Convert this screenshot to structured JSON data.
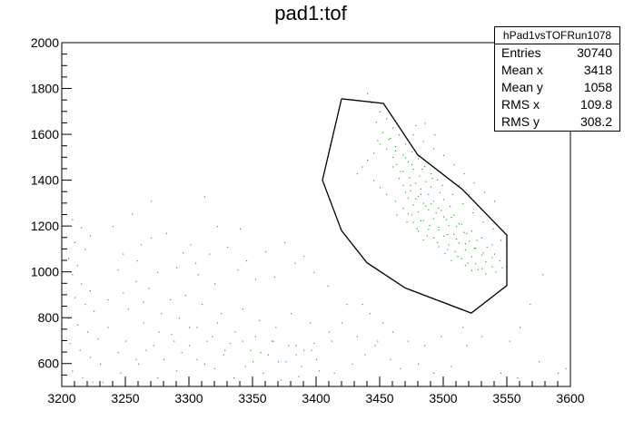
{
  "chart_data": {
    "type": "scatter",
    "title": "pad1:tof",
    "xlim": [
      3200,
      3600
    ],
    "ylim": [
      500,
      2000
    ],
    "x_ticks": [
      "3200",
      "3250",
      "3300",
      "3350",
      "3400",
      "3450",
      "3500",
      "3550",
      "3600"
    ],
    "y_ticks": [
      "600",
      "800",
      "1000",
      "1200",
      "1400",
      "1600",
      "1800",
      "2000"
    ],
    "x_tick_values": [
      3200,
      3250,
      3300,
      3350,
      3400,
      3450,
      3500,
      3550,
      3600
    ],
    "y_tick_values": [
      600,
      800,
      1000,
      1200,
      1400,
      1600,
      1800,
      2000
    ],
    "marker_color": "#00cc00",
    "cut_color": "#000000",
    "stats": {
      "name": "hPad1vsTOFRun1078",
      "rows": [
        {
          "label": "Entries",
          "value": "30740"
        },
        {
          "label": "Mean x",
          "value": "3418"
        },
        {
          "label": "Mean y",
          "value": "1058"
        },
        {
          "label": "RMS x",
          "value": "109.8"
        },
        {
          "label": "RMS y",
          "value": "308.2"
        }
      ]
    },
    "cut_polygon": [
      [
        3420,
        1755
      ],
      [
        3453,
        1735
      ],
      [
        3480,
        1510
      ],
      [
        3515,
        1360
      ],
      [
        3550,
        1160
      ],
      [
        3550,
        940
      ],
      [
        3522,
        820
      ],
      [
        3470,
        930
      ],
      [
        3440,
        1040
      ],
      [
        3420,
        1180
      ],
      [
        3405,
        1400
      ],
      [
        3420,
        1755
      ]
    ],
    "points": [
      [
        3440,
        1780
      ],
      [
        3443,
        1740
      ],
      [
        3450,
        1700
      ],
      [
        3455,
        1670
      ],
      [
        3447,
        1655
      ],
      [
        3460,
        1630
      ],
      [
        3452,
        1610
      ],
      [
        3465,
        1600
      ],
      [
        3458,
        1585
      ],
      [
        3448,
        1575
      ],
      [
        3470,
        1560
      ],
      [
        3462,
        1548
      ],
      [
        3455,
        1538
      ],
      [
        3475,
        1525
      ],
      [
        3468,
        1512
      ],
      [
        3460,
        1502
      ],
      [
        3480,
        1495
      ],
      [
        3472,
        1482
      ],
      [
        3463,
        1470
      ],
      [
        3485,
        1462
      ],
      [
        3476,
        1450
      ],
      [
        3468,
        1440
      ],
      [
        3490,
        1430
      ],
      [
        3481,
        1420
      ],
      [
        3473,
        1412
      ],
      [
        3495,
        1404
      ],
      [
        3486,
        1396
      ],
      [
        3478,
        1388
      ],
      [
        3468,
        1380
      ],
      [
        3490,
        1372
      ],
      [
        3482,
        1364
      ],
      [
        3474,
        1356
      ],
      [
        3497,
        1348
      ],
      [
        3488,
        1340
      ],
      [
        3480,
        1332
      ],
      [
        3472,
        1324
      ],
      [
        3500,
        1318
      ],
      [
        3492,
        1310
      ],
      [
        3484,
        1302
      ],
      [
        3476,
        1294
      ],
      [
        3505,
        1288
      ],
      [
        3496,
        1280
      ],
      [
        3488,
        1272
      ],
      [
        3480,
        1264
      ],
      [
        3472,
        1256
      ],
      [
        3508,
        1250
      ],
      [
        3500,
        1242
      ],
      [
        3492,
        1234
      ],
      [
        3484,
        1226
      ],
      [
        3476,
        1218
      ],
      [
        3512,
        1212
      ],
      [
        3504,
        1204
      ],
      [
        3496,
        1196
      ],
      [
        3488,
        1188
      ],
      [
        3480,
        1180
      ],
      [
        3516,
        1174
      ],
      [
        3508,
        1166
      ],
      [
        3500,
        1158
      ],
      [
        3492,
        1150
      ],
      [
        3484,
        1142
      ],
      [
        3520,
        1136
      ],
      [
        3512,
        1128
      ],
      [
        3504,
        1120
      ],
      [
        3496,
        1112
      ],
      [
        3525,
        1106
      ],
      [
        3517,
        1098
      ],
      [
        3509,
        1090
      ],
      [
        3501,
        1082
      ],
      [
        3530,
        1076
      ],
      [
        3522,
        1068
      ],
      [
        3514,
        1060
      ],
      [
        3506,
        1052
      ],
      [
        3533,
        1046
      ],
      [
        3525,
        1038
      ],
      [
        3517,
        1030
      ],
      [
        3538,
        1024
      ],
      [
        3530,
        1016
      ],
      [
        3522,
        1008
      ],
      [
        3541,
        1002
      ],
      [
        3533,
        994
      ],
      [
        3470,
        1350
      ],
      [
        3478,
        1320
      ],
      [
        3486,
        1290
      ],
      [
        3494,
        1260
      ],
      [
        3502,
        1230
      ],
      [
        3510,
        1200
      ],
      [
        3518,
        1170
      ],
      [
        3526,
        1140
      ],
      [
        3534,
        1110
      ],
      [
        3540,
        1080
      ],
      [
        3465,
        1410
      ],
      [
        3474,
        1380
      ],
      [
        3482,
        1340
      ],
      [
        3490,
        1300
      ],
      [
        3498,
        1270
      ],
      [
        3506,
        1240
      ],
      [
        3514,
        1210
      ],
      [
        3522,
        1180
      ],
      [
        3530,
        1150
      ],
      [
        3538,
        1120
      ],
      [
        3544,
        1050
      ],
      [
        3546,
        1020
      ],
      [
        3460,
        1460
      ],
      [
        3466,
        1440
      ],
      [
        3462,
        1530
      ],
      [
        3470,
        1500
      ],
      [
        3475,
        1470
      ],
      [
        3483,
        1450
      ],
      [
        3491,
        1410
      ],
      [
        3499,
        1380
      ],
      [
        3507,
        1340
      ],
      [
        3515,
        1300
      ],
      [
        3523,
        1260
      ],
      [
        3531,
        1220
      ],
      [
        3539,
        1190
      ],
      [
        3545,
        1140
      ],
      [
        3457,
        1580
      ],
      [
        3450,
        1560
      ],
      [
        3445,
        1520
      ],
      [
        3440,
        1490
      ],
      [
        3436,
        1460
      ],
      [
        3432,
        1430
      ],
      [
        3445,
        1400
      ],
      [
        3450,
        1370
      ],
      [
        3455,
        1340
      ],
      [
        3462,
        1310
      ],
      [
        3468,
        1280
      ],
      [
        3475,
        1250
      ],
      [
        3482,
        1225
      ],
      [
        3489,
        1205
      ],
      [
        3496,
        1185
      ],
      [
        3503,
        1165
      ],
      [
        3510,
        1145
      ],
      [
        3517,
        1125
      ],
      [
        3524,
        1105
      ],
      [
        3531,
        1085
      ],
      [
        3538,
        1065
      ],
      [
        3527,
        1012
      ],
      [
        3519,
        1040
      ],
      [
        3511,
        1070
      ],
      [
        3503,
        1100
      ],
      [
        3495,
        1130
      ],
      [
        3487,
        1160
      ],
      [
        3479,
        1190
      ],
      [
        3471,
        1220
      ],
      [
        3463,
        1250
      ],
      [
        3476,
        1600
      ],
      [
        3484,
        1570
      ],
      [
        3492,
        1540
      ],
      [
        3500,
        1510
      ],
      [
        3508,
        1470
      ],
      [
        3516,
        1430
      ],
      [
        3524,
        1390
      ],
      [
        3532,
        1350
      ],
      [
        3540,
        1310
      ],
      [
        3485,
        1650
      ],
      [
        3478,
        1640
      ],
      [
        3493,
        1600
      ],
      [
        3512,
        1380
      ],
      [
        3520,
        1340
      ],
      [
        3208,
        1230
      ],
      [
        3215,
        1195
      ],
      [
        3222,
        1160
      ],
      [
        3210,
        1130
      ],
      [
        3218,
        1100
      ],
      [
        3205,
        1060
      ],
      [
        3212,
        1030
      ],
      [
        3208,
        990
      ],
      [
        3215,
        950
      ],
      [
        3222,
        920
      ],
      [
        3210,
        890
      ],
      [
        3218,
        860
      ],
      [
        3225,
        830
      ],
      [
        3205,
        800
      ],
      [
        3212,
        770
      ],
      [
        3220,
        740
      ],
      [
        3228,
        710
      ],
      [
        3206,
        690
      ],
      [
        3214,
        660
      ],
      [
        3222,
        630
      ],
      [
        3230,
        600
      ],
      [
        3208,
        570
      ],
      [
        3216,
        540
      ],
      [
        3224,
        520
      ],
      [
        3240,
        1200
      ],
      [
        3255,
        1255
      ],
      [
        3262,
        1120
      ],
      [
        3248,
        1080
      ],
      [
        3270,
        1310
      ],
      [
        3282,
        1170
      ],
      [
        3295,
        1085
      ],
      [
        3305,
        1040
      ],
      [
        3312,
        1330
      ],
      [
        3322,
        1200
      ],
      [
        3340,
        1190
      ],
      [
        3258,
        960
      ],
      [
        3268,
        930
      ],
      [
        3285,
        880
      ],
      [
        3297,
        900
      ],
      [
        3310,
        860
      ],
      [
        3325,
        820
      ],
      [
        3342,
        840
      ],
      [
        3355,
        790
      ],
      [
        3368,
        760
      ],
      [
        3380,
        820
      ],
      [
        3395,
        780
      ],
      [
        3252,
        840
      ],
      [
        3264,
        780
      ],
      [
        3276,
        740
      ],
      [
        3288,
        700
      ],
      [
        3300,
        680
      ],
      [
        3318,
        720
      ],
      [
        3332,
        690
      ],
      [
        3348,
        660
      ],
      [
        3362,
        640
      ],
      [
        3376,
        610
      ],
      [
        3388,
        590
      ],
      [
        3402,
        570
      ],
      [
        3414,
        560
      ],
      [
        3428,
        600
      ],
      [
        3438,
        640
      ],
      [
        3446,
        680
      ],
      [
        3458,
        620
      ],
      [
        3466,
        580
      ],
      [
        3480,
        600
      ],
      [
        3492,
        560
      ],
      [
        3506,
        590
      ],
      [
        3518,
        680
      ],
      [
        3530,
        720
      ],
      [
        3545,
        560
      ],
      [
        3558,
        540
      ],
      [
        3575,
        610
      ],
      [
        3590,
        560
      ],
      [
        3596,
        580
      ],
      [
        3232,
        520
      ],
      [
        3246,
        560
      ],
      [
        3260,
        600
      ],
      [
        3275,
        540
      ],
      [
        3290,
        570
      ],
      [
        3306,
        620
      ],
      [
        3320,
        580
      ],
      [
        3335,
        540
      ],
      [
        3350,
        610
      ],
      [
        3365,
        700
      ],
      [
        3378,
        680
      ],
      [
        3390,
        660
      ],
      [
        3244,
        1010
      ],
      [
        3259,
        1050
      ],
      [
        3275,
        1000
      ],
      [
        3290,
        1020
      ],
      [
        3307,
        990
      ],
      [
        3320,
        950
      ],
      [
        3338,
        1010
      ],
      [
        3352,
        970
      ],
      [
        3367,
        980
      ],
      [
        3383,
        1040
      ],
      [
        3398,
        1000
      ],
      [
        3409,
        940
      ],
      [
        3236,
        760
      ],
      [
        3250,
        700
      ],
      [
        3266,
        660
      ],
      [
        3280,
        620
      ],
      [
        3294,
        650
      ],
      [
        3312,
        600
      ],
      [
        3327,
        640
      ],
      [
        3344,
        590
      ],
      [
        3358,
        560
      ],
      [
        3372,
        530
      ],
      [
        3386,
        545
      ],
      [
        3400,
        620
      ],
      [
        3412,
        700
      ],
      [
        3424,
        860
      ],
      [
        3236,
        880
      ],
      [
        3248,
        910
      ],
      [
        3264,
        870
      ],
      [
        3278,
        820
      ],
      [
        3292,
        800
      ],
      [
        3306,
        760
      ],
      [
        3322,
        780
      ],
      [
        3336,
        740
      ],
      [
        3352,
        720
      ],
      [
        3366,
        700
      ],
      [
        3384,
        680
      ],
      [
        3396,
        660
      ],
      [
        3578,
        990
      ],
      [
        3568,
        860
      ],
      [
        3560,
        760
      ],
      [
        3552,
        700
      ],
      [
        3515,
        760
      ],
      [
        3498,
        720
      ],
      [
        3485,
        680
      ],
      [
        3472,
        700
      ],
      [
        3460,
        740
      ],
      [
        3452,
        780
      ],
      [
        3442,
        820
      ],
      [
        3436,
        860
      ],
      [
        3301,
        1120
      ],
      [
        3316,
        1080
      ],
      [
        3330,
        1110
      ],
      [
        3345,
        1050
      ],
      [
        3360,
        1090
      ],
      [
        3375,
        1130
      ],
      [
        3390,
        1070
      ],
      [
        3270,
        1150
      ],
      [
        3244,
        650
      ],
      [
        3258,
        620
      ],
      [
        3272,
        680
      ],
      [
        3286,
        730
      ],
      [
        3300,
        760
      ],
      [
        3314,
        700
      ],
      [
        3328,
        660
      ],
      [
        3342,
        700
      ],
      [
        3356,
        650
      ],
      [
        3370,
        610
      ],
      [
        3384,
        640
      ],
      [
        3398,
        690
      ],
      [
        3410,
        740
      ],
      [
        3420,
        780
      ],
      [
        3432,
        720
      ],
      [
        3448,
        700
      ]
    ]
  }
}
